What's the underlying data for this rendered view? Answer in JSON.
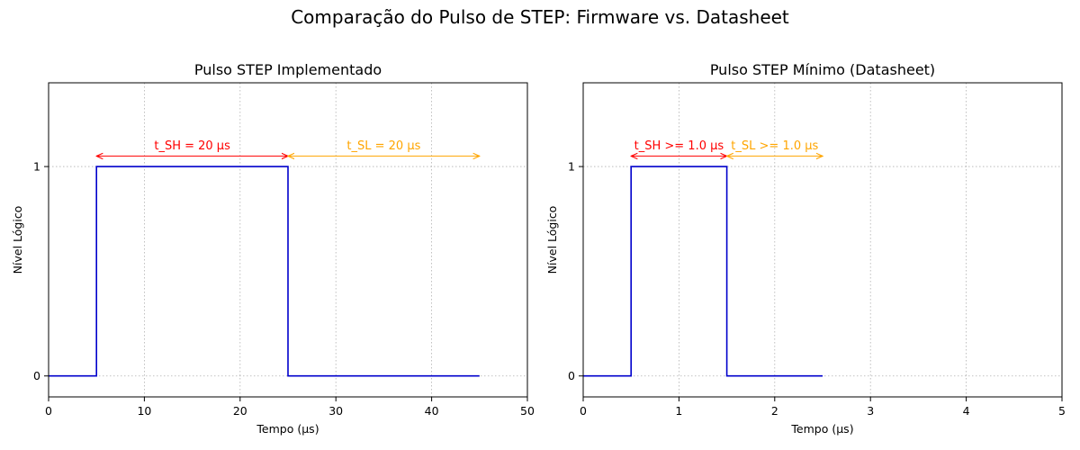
{
  "suptitle": "Comparação do Pulso de STEP: Firmware vs. Datasheet",
  "chart_data": [
    {
      "type": "line",
      "title": "Pulso STEP Implementado",
      "xlabel": "Tempo (µs)",
      "ylabel": "Nível Lógico",
      "xlim": [
        0,
        50
      ],
      "ylim": [
        -0.1,
        1.4
      ],
      "xticks": [
        0,
        10,
        20,
        30,
        40,
        50
      ],
      "xtick_labels": [
        "0",
        "10",
        "20",
        "30",
        "40",
        "50"
      ],
      "yticks": [
        0,
        1
      ],
      "ytick_labels": [
        "0",
        "1"
      ],
      "grid": true,
      "series": [
        {
          "color": "#0000cc",
          "step": "post",
          "x": [
            0,
            5,
            25,
            45
          ],
          "y": [
            0,
            1,
            0,
            0
          ]
        }
      ],
      "annotations": [
        {
          "text": "t_SH = 20 µs",
          "x_start": 5,
          "x_end": 25,
          "y": 1.05,
          "text_y": 1.1,
          "color": "#ff0000"
        },
        {
          "text": "t_SL = 20 µs",
          "x_start": 25,
          "x_end": 45,
          "y": 1.05,
          "text_y": 1.1,
          "color": "#ffa500"
        }
      ]
    },
    {
      "type": "line",
      "title": "Pulso STEP Mínimo (Datasheet)",
      "xlabel": "Tempo (µs)",
      "ylabel": "Nível Lógico",
      "xlim": [
        0,
        5
      ],
      "ylim": [
        -0.1,
        1.4
      ],
      "xticks": [
        0,
        1,
        2,
        3,
        4,
        5
      ],
      "xtick_labels": [
        "0",
        "1",
        "2",
        "3",
        "4",
        "5"
      ],
      "yticks": [
        0,
        1
      ],
      "ytick_labels": [
        "0",
        "1"
      ],
      "grid": true,
      "series": [
        {
          "color": "#0000cc",
          "step": "post",
          "x": [
            0,
            0.5,
            1.5,
            2.5
          ],
          "y": [
            0,
            1,
            0,
            0
          ]
        }
      ],
      "annotations": [
        {
          "text": "t_SH >= 1.0 µs",
          "x_start": 0.5,
          "x_end": 1.5,
          "y": 1.05,
          "text_y": 1.1,
          "color": "#ff0000"
        },
        {
          "text": "t_SL >= 1.0 µs",
          "x_start": 1.5,
          "x_end": 2.5,
          "y": 1.05,
          "text_y": 1.1,
          "color": "#ffa500"
        }
      ]
    }
  ]
}
